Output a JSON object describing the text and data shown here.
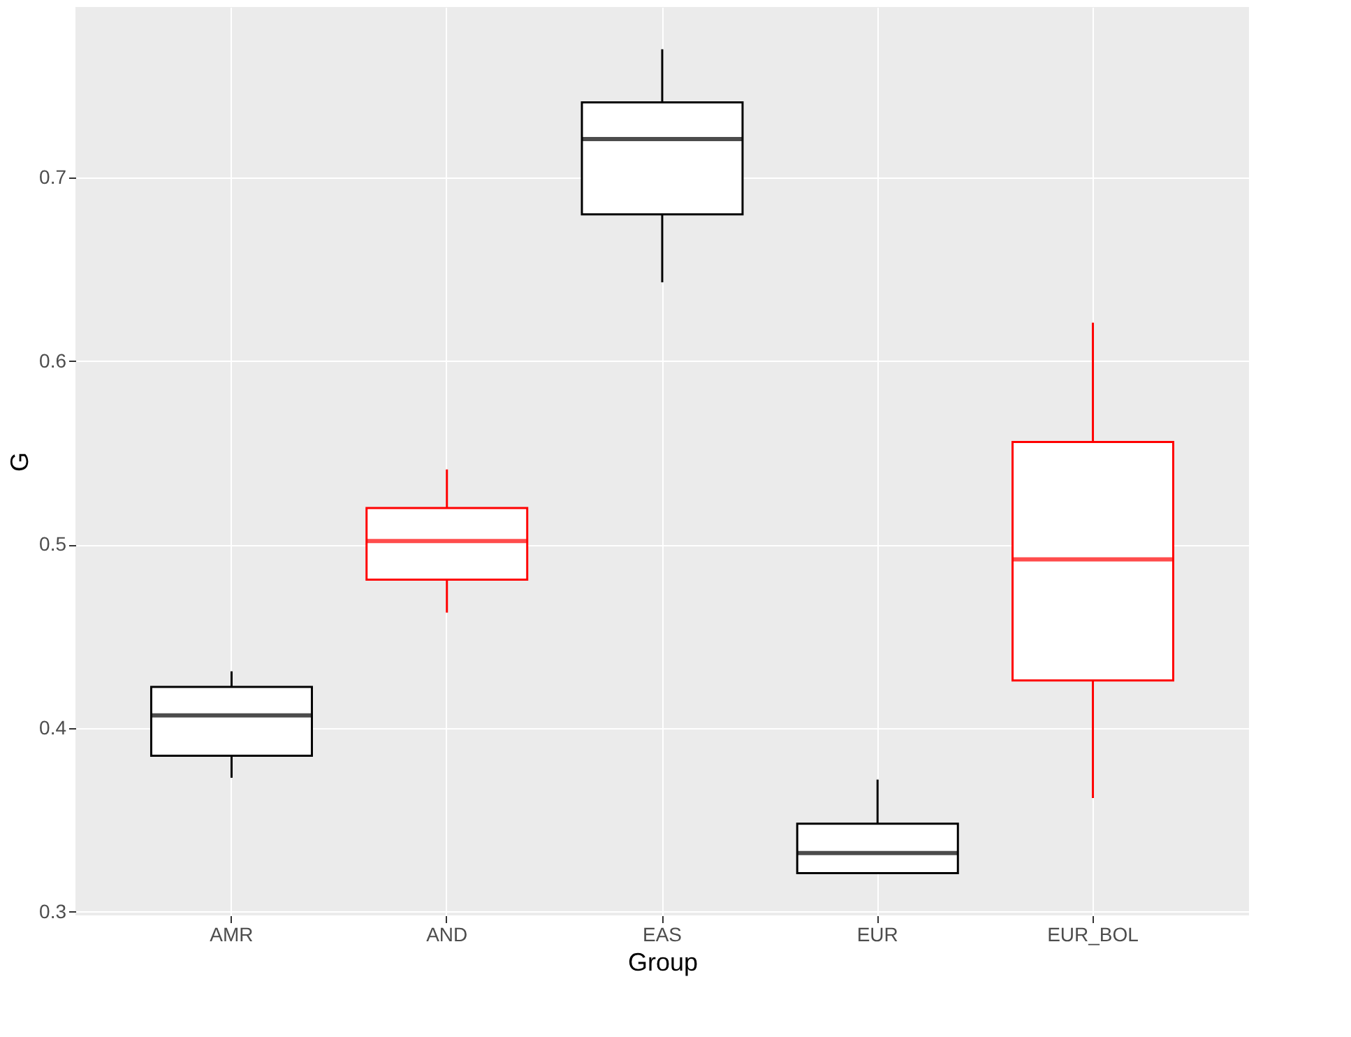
{
  "chart_data": {
    "type": "box",
    "xlabel": "Group",
    "ylabel": "G",
    "categories": [
      "AMR",
      "AND",
      "EAS",
      "EUR",
      "EUR_BOL"
    ],
    "colors": [
      "#000000",
      "#ff0000",
      "#000000",
      "#000000",
      "#ff0000"
    ],
    "boxes": [
      {
        "low": 0.373,
        "q1": 0.385,
        "median": 0.407,
        "q3": 0.4225,
        "high": 0.431
      },
      {
        "low": 0.463,
        "q1": 0.481,
        "median": 0.502,
        "q3": 0.52,
        "high": 0.541
      },
      {
        "low": 0.643,
        "q1": 0.68,
        "median": 0.721,
        "q3": 0.741,
        "high": 0.77
      },
      {
        "low": 0.321,
        "q1": 0.321,
        "median": 0.332,
        "q3": 0.348,
        "high": 0.372
      },
      {
        "low": 0.362,
        "q1": 0.426,
        "median": 0.492,
        "q3": 0.556,
        "high": 0.621
      }
    ],
    "ylim": [
      0.298,
      0.793
    ],
    "yticks": [
      0.3,
      0.4,
      0.5,
      0.6,
      0.7
    ],
    "grid": true
  }
}
